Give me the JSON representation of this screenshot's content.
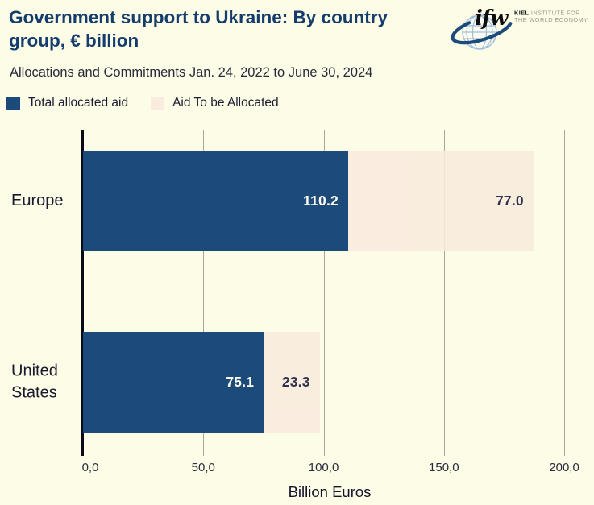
{
  "app": {
    "background": "#fdfce6"
  },
  "header": {
    "title": "Government support to Ukraine: By country group, € billion",
    "subtitle": "Allocations and Commitments Jan. 24, 2022 to June 30, 2024",
    "title_color": "#143d6d"
  },
  "logo": {
    "wordmark": "ifw",
    "institute_line1_bold": "KIEL",
    "institute_line1_rest": " INSTITUTE FOR",
    "institute_line2": "THE WORLD ECONOMY",
    "globe_color": "#9fbedd",
    "swoosh_color": "#1c4a7a"
  },
  "legend": [
    {
      "label": "Total allocated aid",
      "color": "#1c4a7a"
    },
    {
      "label": "Aid To be Allocated",
      "color": "#f9ebde"
    }
  ],
  "chart_data": {
    "type": "bar",
    "orientation": "horizontal",
    "stacked": true,
    "categories": [
      "Europe",
      "United States"
    ],
    "series": [
      {
        "name": "Total allocated aid",
        "color": "#1c4a7a",
        "label_color": "#fffdf0",
        "values": [
          110.2,
          75.1
        ],
        "labels": [
          "110.2",
          "75.1"
        ]
      },
      {
        "name": "Aid To be Allocated",
        "color": "#f9ebde",
        "label_color": "#16163a",
        "values": [
          77.0,
          23.3
        ],
        "labels": [
          "77.0",
          "23.3"
        ]
      }
    ],
    "xlabel": "Billion Euros",
    "xlim": [
      0,
      205
    ],
    "xticks": [
      0,
      50,
      100,
      150,
      200
    ],
    "xtick_labels": [
      "0,0",
      "50,0",
      "100,0",
      "150,0",
      "200,0"
    ],
    "grid": "vertical-gridlines",
    "legend_position": "top-left"
  }
}
